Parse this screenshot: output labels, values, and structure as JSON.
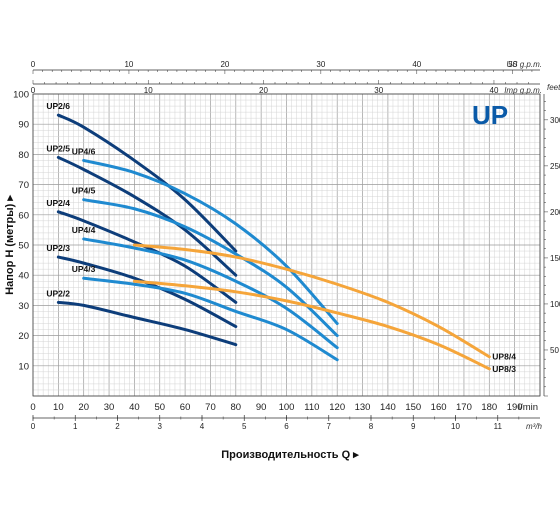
{
  "brand": "UP",
  "chart_data": {
    "type": "line",
    "xlabel": "Производительность Q",
    "ylabel": "Напор Н (метры)",
    "x_unit": "l/min",
    "xlim": [
      0,
      200
    ],
    "ylim": [
      0,
      100
    ],
    "x_ticks": [
      0,
      10,
      20,
      30,
      40,
      50,
      60,
      70,
      80,
      90,
      100,
      110,
      120,
      130,
      140,
      150,
      160,
      170,
      180,
      190
    ],
    "y_ticks": [
      10,
      20,
      30,
      40,
      50,
      60,
      70,
      80,
      90,
      100
    ],
    "secondary_axes": {
      "m3h": {
        "unit": "m³/h",
        "ticks": [
          0,
          1,
          2,
          3,
          4,
          5,
          6,
          7,
          8,
          9,
          10,
          11
        ]
      },
      "us_gpm": {
        "unit": "US g.p.m.",
        "ticks": [
          0,
          10,
          20,
          30,
          40,
          50
        ]
      },
      "imp_gpm": {
        "unit": "Imp g.p.m.",
        "ticks": [
          0,
          10,
          20,
          30,
          40
        ]
      },
      "feet": {
        "unit": "feet",
        "ticks": [
          50,
          100,
          150,
          200,
          250,
          300
        ]
      }
    },
    "series": [
      {
        "name": "UP2/6",
        "color": "#0d3d7a",
        "x": [
          10,
          20,
          40,
          60,
          80
        ],
        "y": [
          93,
          89,
          78,
          65,
          48
        ]
      },
      {
        "name": "UP2/5",
        "color": "#0d3d7a",
        "x": [
          10,
          20,
          40,
          60,
          80
        ],
        "y": [
          79,
          75,
          66,
          55,
          40
        ]
      },
      {
        "name": "UP2/4",
        "color": "#0d3d7a",
        "x": [
          10,
          20,
          40,
          60,
          80
        ],
        "y": [
          61,
          58,
          51,
          43,
          31
        ]
      },
      {
        "name": "UP2/3",
        "color": "#0d3d7a",
        "x": [
          10,
          20,
          40,
          60,
          80
        ],
        "y": [
          46,
          44,
          39,
          32,
          23
        ]
      },
      {
        "name": "UP2/2",
        "color": "#0d3d7a",
        "x": [
          10,
          20,
          40,
          60,
          80
        ],
        "y": [
          31,
          30,
          26,
          22,
          17
        ]
      },
      {
        "name": "UP4/6",
        "color": "#1f8ad0",
        "x": [
          20,
          40,
          60,
          80,
          100,
          120
        ],
        "y": [
          78,
          74,
          67,
          57,
          43,
          24
        ]
      },
      {
        "name": "UP4/5",
        "color": "#1f8ad0",
        "x": [
          20,
          40,
          60,
          80,
          100,
          120
        ],
        "y": [
          65,
          62,
          56,
          47,
          36,
          20
        ]
      },
      {
        "name": "UP4/4",
        "color": "#1f8ad0",
        "x": [
          20,
          40,
          60,
          80,
          100,
          120
        ],
        "y": [
          52,
          49,
          45,
          38,
          29,
          16
        ]
      },
      {
        "name": "UP4/3",
        "color": "#1f8ad0",
        "x": [
          20,
          40,
          60,
          80,
          100,
          120
        ],
        "y": [
          39,
          37,
          34,
          28,
          22,
          12
        ]
      },
      {
        "name": "UP8/4",
        "color": "#f5a53a",
        "x": [
          40,
          60,
          80,
          100,
          120,
          140,
          160,
          180
        ],
        "y": [
          50,
          48.5,
          46,
          42,
          37,
          31,
          23,
          13
        ]
      },
      {
        "name": "UP8/3",
        "color": "#f5a53a",
        "x": [
          40,
          60,
          80,
          100,
          120,
          140,
          160,
          180
        ],
        "y": [
          38,
          36.5,
          34.5,
          31.5,
          27.5,
          23,
          17,
          9
        ]
      }
    ]
  }
}
